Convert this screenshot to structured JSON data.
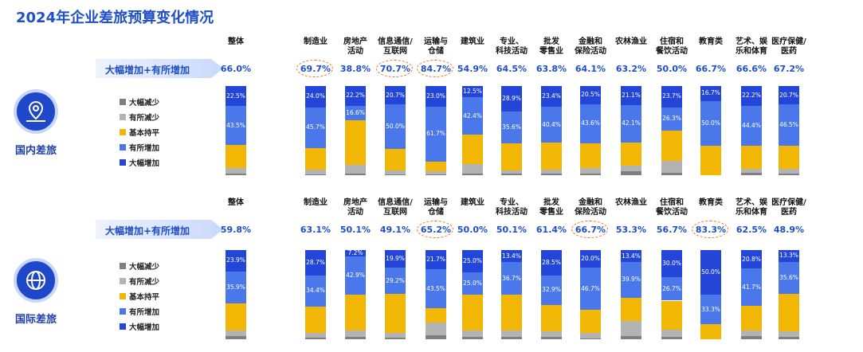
{
  "title": "2024年企业差旅预算变化情况",
  "chart_data": [
    {
      "type": "stacked_bar",
      "panel": "国内差旅",
      "ylim": [
        0,
        100
      ],
      "categories": [
        "整体",
        "制造业",
        "房地产\n活动",
        "信息通信/\n互联网",
        "运输与\n仓储",
        "建筑业",
        "专业、\n科技活动",
        "批发\n零售业",
        "金融和\n保险活动",
        "农林渔业",
        "住宿和\n餐饮活动",
        "教育类",
        "艺术、娱\n乐和体育",
        "医疗保健/\n医药"
      ],
      "summary": {
        "label": "大幅增加+有所增加",
        "values": [
          66.0,
          69.7,
          38.8,
          70.7,
          84.7,
          54.9,
          64.5,
          63.8,
          64.1,
          63.2,
          50.0,
          66.7,
          66.6,
          67.2
        ],
        "value_labels": [
          "66.0%",
          "69.7%",
          "38.8%",
          "70.7%",
          "84.7%",
          "54.9%",
          "64.5%",
          "63.8%",
          "64.1%",
          "63.2%",
          "50.0%",
          "66.7%",
          "66.6%",
          "67.2%"
        ],
        "circled": [
          1,
          3,
          4
        ]
      },
      "series": [
        {
          "name": "大幅减少",
          "color": "#7f7f7f",
          "values": [
            2,
            1.3,
            2.2,
            1.3,
            1.3,
            2.1,
            2,
            2.2,
            1.9,
            4.8,
            3,
            0,
            3,
            1.8
          ]
        },
        {
          "name": "有所减少",
          "color": "#b3b3b3",
          "values": [
            6,
            4.7,
            9,
            4,
            3,
            10,
            3.5,
            4,
            6,
            6,
            13,
            0,
            4.4,
            5
          ]
        },
        {
          "name": "基本持平",
          "color": "#f2b705",
          "values": [
            26,
            24.3,
            50,
            24,
            11,
            33,
            30,
            30,
            28,
            26,
            34,
            33.3,
            26,
            26
          ]
        },
        {
          "name": "有所增加",
          "color": "#4a78ea",
          "values": [
            43.5,
            45.7,
            16.6,
            50.0,
            61.7,
            42.4,
            35.6,
            40.4,
            43.6,
            42.1,
            26.3,
            50.0,
            44.4,
            46.5
          ],
          "value_labels": [
            "43.5%",
            "45.7%",
            "16.6%",
            "50.0%",
            "61.7%",
            "42.4%",
            "35.6%",
            "40.4%",
            "43.6%",
            "42.1%",
            "26.3%",
            "50.0%",
            "44.4%",
            "46.5%"
          ]
        },
        {
          "name": "大幅增加",
          "color": "#2346d8",
          "values": [
            22.5,
            24.0,
            22.2,
            20.7,
            23.0,
            12.5,
            28.9,
            23.4,
            20.5,
            21.1,
            23.7,
            16.7,
            22.2,
            20.7
          ],
          "value_labels": [
            "22.5%",
            "24.0%",
            "22.2%",
            "20.7%",
            "23.0%",
            "12.5%",
            "28.9%",
            "23.4%",
            "20.5%",
            "21.1%",
            "23.7%",
            "16.7%",
            "22.2%",
            "20.7%"
          ]
        }
      ]
    },
    {
      "type": "stacked_bar",
      "panel": "国际差旅",
      "ylim": [
        0,
        100
      ],
      "categories": [
        "整体",
        "制造业",
        "房地产\n活动",
        "信息通信/\n互联网",
        "运输与\n仓储",
        "建筑业",
        "专业、\n科技活动",
        "批发\n零售业",
        "金融和\n保险活动",
        "农林渔业",
        "住宿和\n餐饮活动",
        "教育类",
        "艺术、娱\n乐和体育",
        "医疗保健/\n医药"
      ],
      "summary": {
        "label": "大幅增加+有所增加",
        "values": [
          59.8,
          63.1,
          50.1,
          49.1,
          65.2,
          50.0,
          50.1,
          61.4,
          66.7,
          53.3,
          56.7,
          83.3,
          62.5,
          48.9
        ],
        "value_labels": [
          "59.8%",
          "63.1%",
          "50.1%",
          "49.1%",
          "65.2%",
          "50.0%",
          "50.1%",
          "61.4%",
          "66.7%",
          "53.3%",
          "56.7%",
          "83.3%",
          "62.5%",
          "48.9%"
        ],
        "circled": [
          4,
          8,
          11
        ]
      },
      "series": [
        {
          "name": "大幅减少",
          "color": "#7f7f7f",
          "values": [
            3.2,
            1.9,
            2.9,
            1.9,
            4.8,
            3,
            2.9,
            2.6,
            1.3,
            3.7,
            2.3,
            0,
            3.5,
            3.1
          ]
        },
        {
          "name": "有所减少",
          "color": "#b3b3b3",
          "values": [
            7,
            5,
            7,
            5,
            14,
            7,
            7,
            6,
            6,
            17,
            8,
            0,
            6,
            6
          ]
        },
        {
          "name": "基本持平",
          "color": "#f2b705",
          "values": [
            30,
            30,
            40,
            44,
            16,
            40,
            40,
            30,
            26,
            26,
            33,
            16.7,
            28,
            42
          ]
        },
        {
          "name": "有所增加",
          "color": "#4a78ea",
          "values": [
            35.9,
            34.4,
            42.9,
            29.2,
            43.5,
            25.0,
            36.7,
            32.9,
            46.7,
            39.9,
            26.7,
            33.3,
            41.7,
            35.6
          ],
          "value_labels": [
            "35.9%",
            "34.4%",
            "42.9%",
            "29.2%",
            "43.5%",
            "25.0%",
            "36.7%",
            "32.9%",
            "46.7%",
            "39.9%",
            "26.7%",
            "33.3%",
            "41.7%",
            "35.6%"
          ]
        },
        {
          "name": "大幅增加",
          "color": "#2346d8",
          "values": [
            23.9,
            28.7,
            7.2,
            19.9,
            21.7,
            25.0,
            13.4,
            28.5,
            20.0,
            13.4,
            30.0,
            50.0,
            20.8,
            13.3
          ],
          "value_labels": [
            "23.9%",
            "28.7%",
            "7.2%",
            "19.9%",
            "21.7%",
            "25.0%",
            "13.4%",
            "28.5%",
            "20.0%",
            "13.4%",
            "30.0%",
            "50.0%",
            "20.8%",
            "13.3%"
          ]
        }
      ]
    }
  ]
}
